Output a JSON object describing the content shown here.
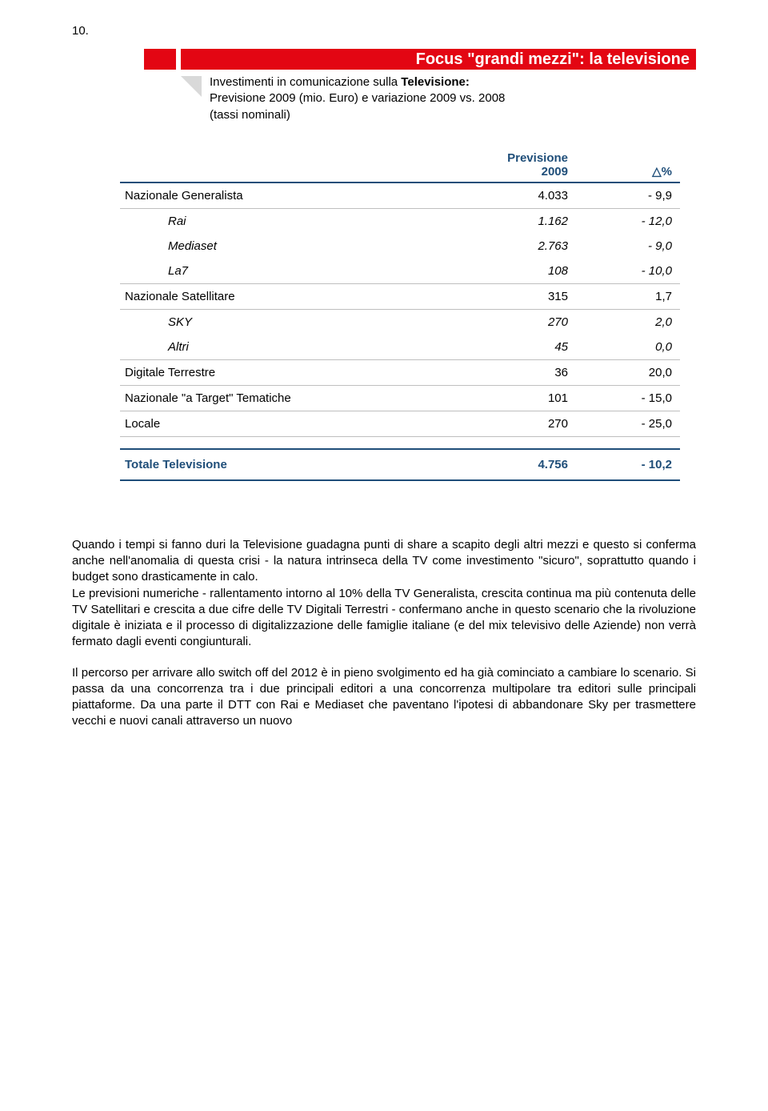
{
  "page_number": "10.",
  "title": "Focus \"grandi mezzi\": la televisione",
  "subtitle_line1_prefix": "Investimenti in comunicazione sulla ",
  "subtitle_line1_bold": "Televisione:",
  "subtitle_line2": "Previsione 2009 (mio. Euro) e variazione 2009 vs. 2008",
  "subtitle_line3": "(tassi nominali)",
  "table": {
    "header_val_line1": "Previsione",
    "header_val_line2": "2009",
    "header_pct": "△%",
    "rows": [
      {
        "label": "Nazionale Generalista",
        "val": "4.033",
        "pct": "-  9,9",
        "indent": false,
        "italic": false,
        "sep": true
      },
      {
        "label": "Rai",
        "val": "1.162",
        "pct": "- 12,0",
        "indent": true,
        "italic": true,
        "sep": false
      },
      {
        "label": "Mediaset",
        "val": "2.763",
        "pct": "-  9,0",
        "indent": true,
        "italic": true,
        "sep": false
      },
      {
        "label": "La7",
        "val": "108",
        "pct": "- 10,0",
        "indent": true,
        "italic": true,
        "sep": true
      },
      {
        "label": "Nazionale Satellitare",
        "val": "315",
        "pct": "1,7",
        "indent": false,
        "italic": false,
        "sep": true
      },
      {
        "label": "SKY",
        "val": "270",
        "pct": "2,0",
        "indent": true,
        "italic": true,
        "sep": false
      },
      {
        "label": "Altri",
        "val": "45",
        "pct": "0,0",
        "indent": true,
        "italic": true,
        "sep": true
      },
      {
        "label": "Digitale Terrestre",
        "val": "36",
        "pct": "20,0",
        "indent": false,
        "italic": false,
        "sep": true
      },
      {
        "label": "Nazionale \"a Target\" Tematiche",
        "val": "101",
        "pct": "- 15,0",
        "indent": false,
        "italic": false,
        "sep": true
      },
      {
        "label": "Locale",
        "val": "270",
        "pct": "- 25,0",
        "indent": false,
        "italic": false,
        "sep": true
      }
    ],
    "total_label": "Totale Televisione",
    "total_val": "4.756",
    "total_pct": "- 10,2"
  },
  "paragraphs": [
    "Quando i tempi si fanno duri la Televisione guadagna punti di share a scapito degli altri mezzi e questo si conferma anche nell'anomalia di questa crisi - la natura intrinseca della TV come investimento \"sicuro\", soprattutto quando i budget sono drasticamente in calo.\nLe previsioni numeriche - rallentamento intorno al 10% della TV Generalista, crescita continua ma più contenuta delle TV Satellitari e crescita a due cifre delle TV Digitali Terrestri - confermano anche in questo scenario che la rivoluzione digitale è iniziata e il processo di digitalizzazione delle famiglie italiane (e del mix televisivo delle Aziende) non verrà fermato dagli eventi congiunturali.",
    "Il percorso per arrivare allo switch off del 2012 è in pieno svolgimento ed ha già cominciato a cambiare lo scenario. Si passa da una concorrenza tra i due principali editori a una concorrenza multipolare tra editori sulle principali piattaforme. Da una parte il DTT con Rai e Mediaset che paventano l'ipotesi di abbandonare Sky per trasmettere vecchi e nuovi canali attraverso un nuovo"
  ]
}
